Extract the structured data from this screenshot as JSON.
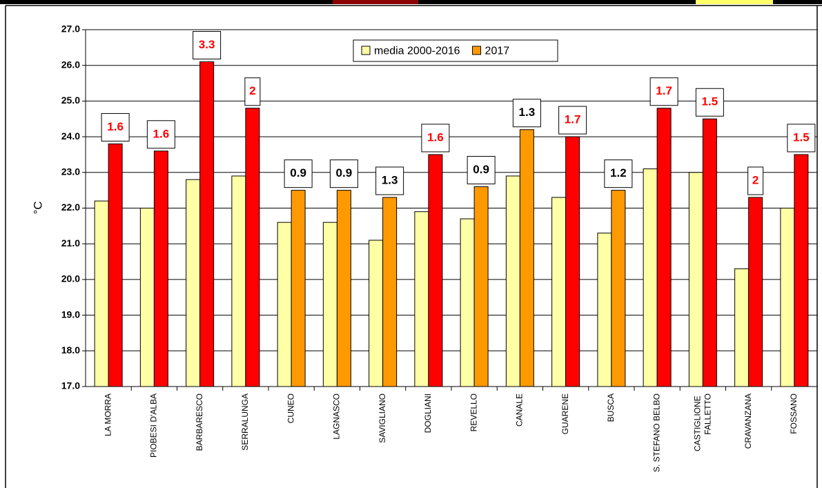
{
  "chart_data": {
    "type": "bar",
    "y_label": "°C",
    "categories": [
      "LA MORRA",
      "PIOBESI D'ALBA",
      "BARBARESCO",
      "SERRALUNGA",
      "CUNEO",
      "LAGNASCO",
      "SAVIGLIANO",
      "DOGLIANI",
      "REVELLO",
      "CANALE",
      "GUARENE",
      "BUSCA",
      "S. STEFANO BELBO",
      "CASTIGLIONE FALLETTO",
      "CRAVANZANA",
      "FOSSANO"
    ],
    "series": [
      {
        "name": "media 2000-2016",
        "color": "#ffffa6",
        "values": [
          22.2,
          22.0,
          22.8,
          22.9,
          21.6,
          21.6,
          21.1,
          21.9,
          21.7,
          22.9,
          22.3,
          21.3,
          23.1,
          23.0,
          20.3,
          22.0
        ]
      },
      {
        "name": "2017",
        "color": "#ff9900",
        "colors": [
          "#ff0000",
          "#ff0000",
          "#ff0000",
          "#ff0000",
          "#ff9900",
          "#ff9900",
          "#ff9900",
          "#ff0000",
          "#ff9900",
          "#ff9900",
          "#ff0000",
          "#ff9900",
          "#ff0000",
          "#ff0000",
          "#ff0000",
          "#ff0000"
        ],
        "values": [
          23.8,
          23.6,
          26.1,
          24.8,
          22.5,
          22.5,
          22.3,
          23.5,
          22.6,
          24.2,
          24.0,
          22.5,
          24.8,
          24.5,
          22.3,
          23.5
        ]
      }
    ],
    "anomaly_labels": [
      1.6,
      1.6,
      3.3,
      2,
      0.9,
      0.9,
      1.3,
      1.6,
      0.9,
      1.3,
      1.7,
      1.2,
      1.7,
      1.5,
      2,
      1.5
    ],
    "anomaly_label_colors": [
      "#ff0000",
      "#ff0000",
      "#ff0000",
      "#ff0000",
      "#000000",
      "#000000",
      "#000000",
      "#ff0000",
      "#000000",
      "#000000",
      "#ff0000",
      "#000000",
      "#ff0000",
      "#ff0000",
      "#ff0000",
      "#ff0000"
    ],
    "ylim": [
      17,
      27
    ],
    "yticks": [
      {
        "value": 17,
        "label": "17.0"
      },
      {
        "value": 18,
        "label": "18.0"
      },
      {
        "value": 19,
        "label": "19.0"
      },
      {
        "value": 20,
        "label": "20.0"
      },
      {
        "value": 21,
        "label": "21.0"
      },
      {
        "value": 22,
        "label": "22.0"
      },
      {
        "value": 23,
        "label": "23.0"
      },
      {
        "value": 24,
        "label": "24.0"
      },
      {
        "value": 25,
        "label": "25.0"
      },
      {
        "value": 26,
        "label": "26.0"
      },
      {
        "value": 27,
        "label": "27.0"
      }
    ],
    "grid": true,
    "legend": "top-center"
  }
}
